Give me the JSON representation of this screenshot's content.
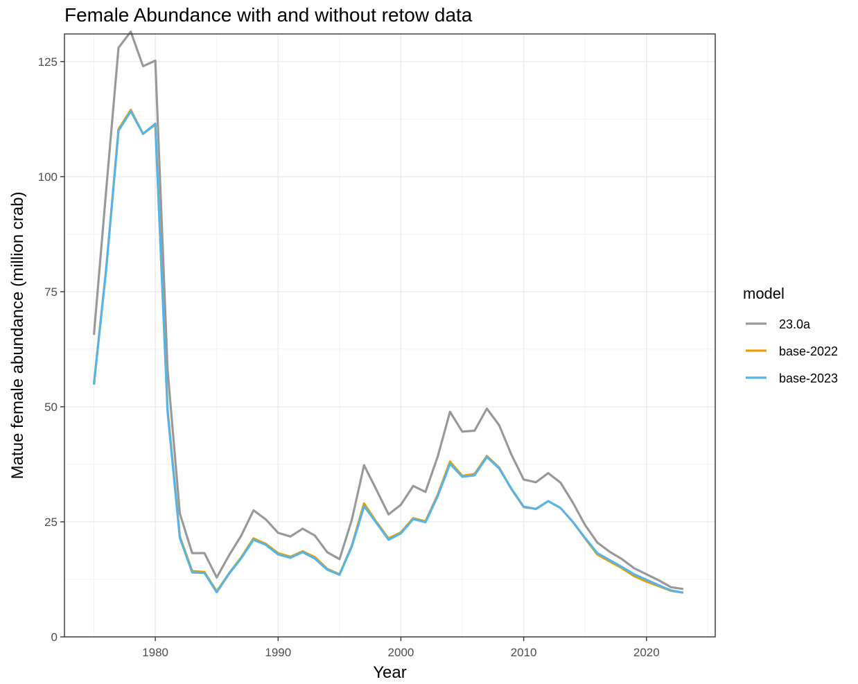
{
  "chart_data": {
    "type": "line",
    "title": "Female Abundance with and without retow data",
    "xlabel": "Year",
    "ylabel": "Matue female abundance (million crab)",
    "xlim": [
      1972.6,
      2025.6
    ],
    "ylim": [
      0,
      131
    ],
    "x_ticks": [
      1980,
      1990,
      2000,
      2010,
      2020
    ],
    "y_ticks": [
      0,
      25,
      50,
      75,
      100,
      125
    ],
    "grid": true,
    "legend": {
      "title": "model",
      "position": "right"
    },
    "x": [
      1975,
      1976,
      1977,
      1978,
      1979,
      1980,
      1981,
      1982,
      1983,
      1984,
      1985,
      1986,
      1987,
      1988,
      1989,
      1990,
      1991,
      1992,
      1993,
      1994,
      1995,
      1996,
      1997,
      1998,
      1999,
      2000,
      2001,
      2002,
      2003,
      2004,
      2005,
      2006,
      2007,
      2008,
      2009,
      2010,
      2011,
      2012,
      2013,
      2014,
      2015,
      2016,
      2017,
      2018,
      2019,
      2020,
      2021,
      2022,
      2023
    ],
    "series": [
      {
        "name": "23.0a",
        "color": "#999999",
        "values": [
          65.6,
          97.0,
          128.0,
          131.5,
          124.0,
          125.2,
          58.0,
          26.8,
          18.2,
          18.2,
          12.9,
          17.7,
          22.0,
          27.5,
          25.5,
          22.6,
          21.8,
          23.5,
          22.0,
          18.4,
          16.9,
          25.4,
          37.3,
          32.0,
          26.6,
          28.7,
          32.8,
          31.5,
          39.2,
          48.9,
          44.6,
          44.8,
          49.6,
          46.0,
          39.6,
          34.2,
          33.6,
          35.6,
          33.5,
          29.2,
          24.3,
          20.5,
          18.5,
          16.9,
          14.9,
          13.6,
          12.3,
          10.8,
          10.4
        ]
      },
      {
        "name": "base-2022",
        "color": "#E69F00",
        "values": [
          55.0,
          80.0,
          110.3,
          114.5,
          109.3,
          111.3,
          49.5,
          21.8,
          14.3,
          14.1,
          9.9,
          13.8,
          17.3,
          21.4,
          20.2,
          18.2,
          17.4,
          18.6,
          17.3,
          14.8,
          13.6,
          19.8,
          29.0,
          25.0,
          21.4,
          22.7,
          25.8,
          25.1,
          30.9,
          38.1,
          35.0,
          35.4,
          39.3,
          36.8,
          32.1,
          28.2,
          27.8,
          29.5,
          28.0,
          25.0,
          21.4,
          17.9,
          16.4,
          14.9,
          13.2,
          12.0,
          11.0,
          10.0,
          9.6
        ]
      },
      {
        "name": "base-2023",
        "color": "#56B4E9",
        "values": [
          54.8,
          79.8,
          110.0,
          114.2,
          109.3,
          111.5,
          48.9,
          21.5,
          14.0,
          13.9,
          9.7,
          13.7,
          17.1,
          21.1,
          20.0,
          17.9,
          17.2,
          18.4,
          17.0,
          14.6,
          13.5,
          19.6,
          28.4,
          24.8,
          21.1,
          22.5,
          25.6,
          24.9,
          30.6,
          37.6,
          34.8,
          35.1,
          39.1,
          36.6,
          32.2,
          28.3,
          27.8,
          29.5,
          28.0,
          25.0,
          21.5,
          18.2,
          16.7,
          15.2,
          13.6,
          12.4,
          11.2,
          10.1,
          9.6
        ]
      }
    ]
  }
}
